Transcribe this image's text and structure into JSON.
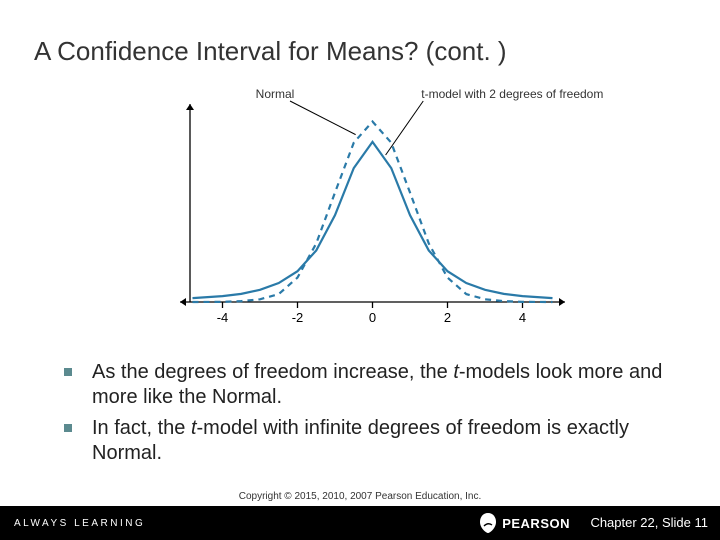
{
  "title": "A Confidence Interval for Means? (cont. )",
  "chart": {
    "type": "line",
    "background_color": "#ffffff",
    "axis_color": "#000000",
    "xlim": [
      -5,
      5
    ],
    "ylim": [
      0,
      0.42
    ],
    "xticks": [
      -4,
      -2,
      0,
      2,
      4
    ],
    "label_normal": "Normal",
    "label_tmodel": "t-model with 2 degrees of freedom",
    "label_fontsize": 12,
    "label_color": "#333333",
    "pointer_color": "#000000",
    "series": [
      {
        "name": "normal",
        "color": "#2a7aa8",
        "line_width": 2.2,
        "dash": "6,5",
        "points": [
          [
            -4.8,
            0.0
          ],
          [
            -4.0,
            0.0003
          ],
          [
            -3.5,
            0.002
          ],
          [
            -3.0,
            0.006
          ],
          [
            -2.5,
            0.0175
          ],
          [
            -2.0,
            0.054
          ],
          [
            -1.5,
            0.1295
          ],
          [
            -1.0,
            0.242
          ],
          [
            -0.5,
            0.3521
          ],
          [
            0.0,
            0.3989
          ],
          [
            0.5,
            0.3521
          ],
          [
            1.0,
            0.242
          ],
          [
            1.5,
            0.1295
          ],
          [
            2.0,
            0.054
          ],
          [
            2.5,
            0.0175
          ],
          [
            3.0,
            0.006
          ],
          [
            3.5,
            0.002
          ],
          [
            4.0,
            0.0003
          ],
          [
            4.8,
            0.0
          ]
        ]
      },
      {
        "name": "t2",
        "color": "#2a7aa8",
        "line_width": 2.2,
        "dash": "none",
        "points": [
          [
            -4.8,
            0.0085
          ],
          [
            -4.0,
            0.013
          ],
          [
            -3.5,
            0.018
          ],
          [
            -3.0,
            0.027
          ],
          [
            -2.5,
            0.042
          ],
          [
            -2.0,
            0.068
          ],
          [
            -1.5,
            0.114
          ],
          [
            -1.0,
            0.192
          ],
          [
            -0.5,
            0.296
          ],
          [
            0.0,
            0.354
          ],
          [
            0.5,
            0.296
          ],
          [
            1.0,
            0.192
          ],
          [
            1.5,
            0.114
          ],
          [
            2.0,
            0.068
          ],
          [
            2.5,
            0.042
          ],
          [
            3.0,
            0.027
          ],
          [
            3.5,
            0.018
          ],
          [
            4.0,
            0.013
          ],
          [
            4.8,
            0.0085
          ]
        ]
      }
    ]
  },
  "bullets": [
    {
      "html": "As the degrees of freedom increase, the <em>t</em>-models look more and more like the Normal."
    },
    {
      "html": "In fact, the <em>t</em>-model with infinite degrees of freedom is exactly Normal."
    }
  ],
  "copyright": "Copyright © 2015, 2010, 2007 Pearson Education, Inc.",
  "footer": {
    "always_learning": "ALWAYS LEARNING",
    "brand": "PEARSON",
    "slide": "Chapter 22, Slide 11"
  },
  "colors": {
    "bullet_icon": "#5b8a8f",
    "footer_bg": "#000000",
    "footer_text": "#ffffff"
  }
}
